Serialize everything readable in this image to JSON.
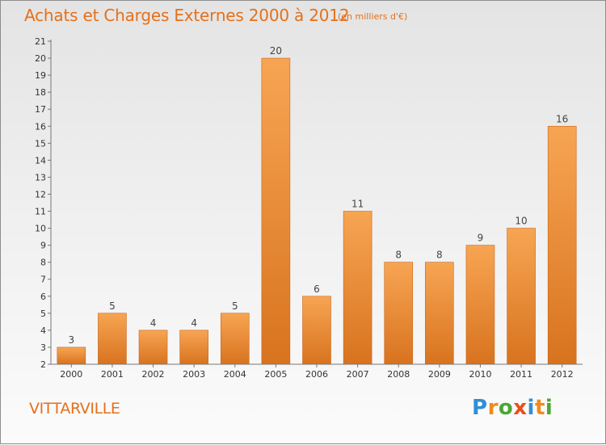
{
  "title": "Achats et Charges Externes 2000 à 2012",
  "subtitle": "(en milliers d'€)",
  "city": "VITTARVILLE",
  "logo": {
    "letters": [
      "P",
      "r",
      "o",
      "x",
      "i",
      "t",
      "i"
    ],
    "colors": [
      "#2f8fd6",
      "#f08a1c",
      "#4aa832",
      "#e94e1b",
      "#2f8fd6",
      "#f08a1c",
      "#4aa832"
    ]
  },
  "colors": {
    "accent": "#e5701a",
    "bar_light": "#f7a553",
    "bar_dark": "#d8731f"
  },
  "chart_data": {
    "type": "bar",
    "categories": [
      "2000",
      "2001",
      "2002",
      "2003",
      "2004",
      "2005",
      "2006",
      "2007",
      "2008",
      "2009",
      "2010",
      "2011",
      "2012"
    ],
    "values": [
      3,
      5,
      4,
      4,
      5,
      20,
      6,
      11,
      8,
      8,
      9,
      10,
      16
    ],
    "ylim": [
      2,
      21
    ],
    "yticks": [
      "2",
      "3",
      "4",
      "5",
      "6",
      "7",
      "8",
      "9",
      "10",
      "11",
      "12",
      "13",
      "14",
      "15",
      "16",
      "17",
      "18",
      "19",
      "20",
      "21"
    ],
    "grid": false
  }
}
